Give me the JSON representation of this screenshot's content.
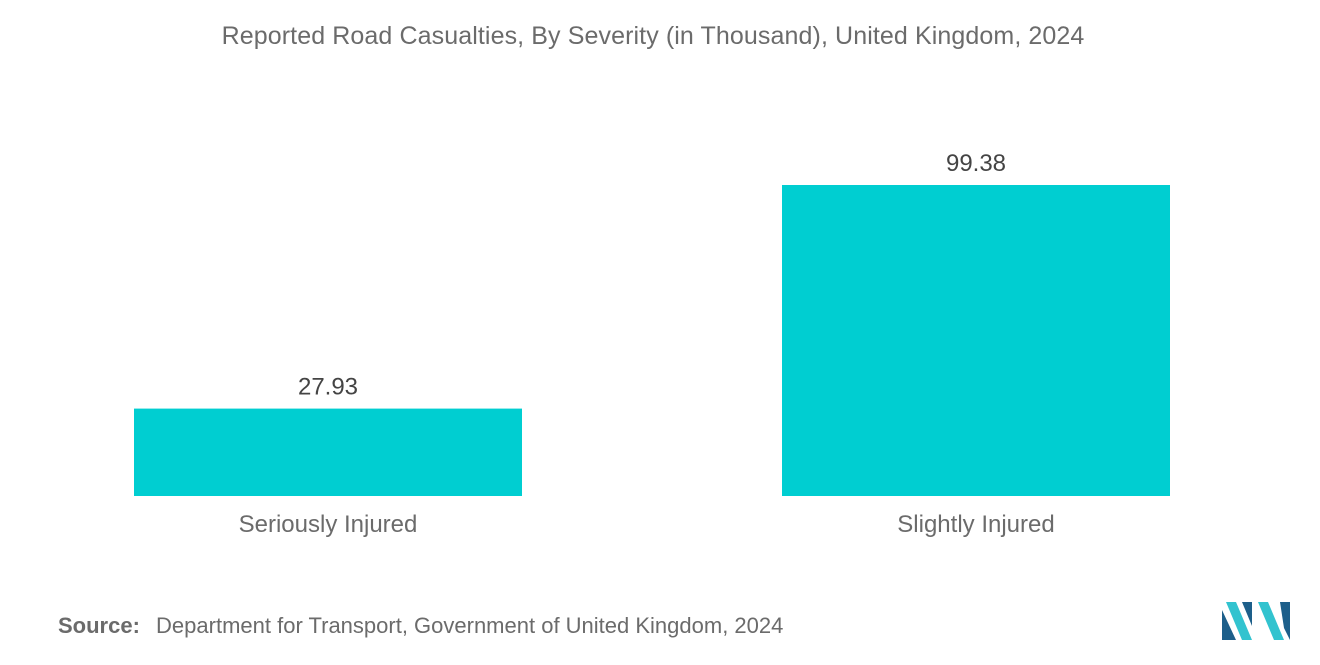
{
  "title": "Reported Road Casualties, By Severity (in Thousand), United Kingdom, 2024",
  "source": {
    "label": "Source:",
    "text": "Department for Transport, Government of United Kingdom, 2024"
  },
  "colors": {
    "bar": "#00ced1",
    "text": "#6b6b6b",
    "value_label": "#444444",
    "logo_dark": "#1d5f8a",
    "logo_light": "#32c3cf"
  },
  "logo": {
    "icon": "mordor-intelligence-logo"
  },
  "chart_data": {
    "type": "bar",
    "categories": [
      "Seriously Injured",
      "Slightly Injured"
    ],
    "values": [
      27.93,
      99.38
    ],
    "value_labels": [
      "27.93",
      "99.38"
    ],
    "xlabel": "",
    "ylabel": "",
    "ylim": [
      0,
      99.38
    ],
    "grid": false,
    "legend": "none"
  }
}
